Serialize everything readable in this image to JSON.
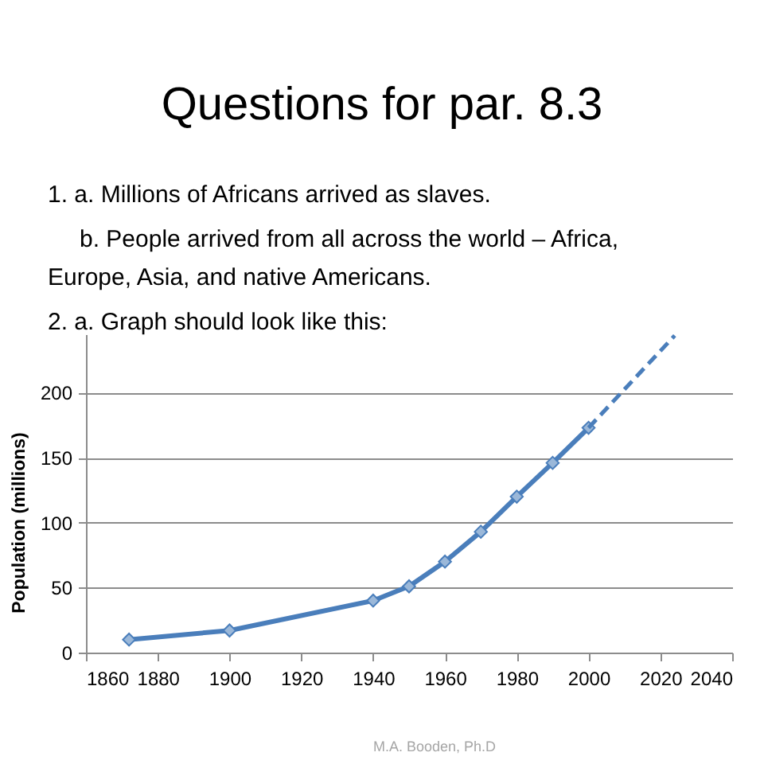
{
  "chart_data": {
    "type": "line",
    "title": "Questions for par. 8.3",
    "ylabel": "Population (millions)",
    "annotations": [
      "1. a. Millions of Africans arrived as slaves.",
      "b. People arrived from all across the world – Africa, Europe, Asia, and native Americans.",
      "2. a. Graph should look like this:",
      "M.A. Booden, Ph.D"
    ],
    "series": [
      {
        "color": "#4a7ebb",
        "marker": "diamond",
        "line_style": "solid",
        "x": [
          1872,
          1900,
          1940,
          1950,
          1960,
          1970,
          1980,
          1990,
          2000
        ],
        "values": [
          10,
          17,
          40,
          51,
          70,
          93,
          120,
          146,
          173
        ]
      },
      {
        "color": "#4a7ebb",
        "marker": "none",
        "line_style": "dashed",
        "x": [
          2000,
          2024
        ],
        "values": [
          173,
          244
        ]
      }
    ],
    "xlim": [
      1860,
      2040
    ],
    "xticks": [
      1860,
      1880,
      1900,
      1920,
      1940,
      1960,
      1980,
      2000,
      2020,
      2040
    ],
    "ylim": [
      0,
      245
    ],
    "yticks": [
      0,
      50,
      100,
      150,
      200
    ],
    "grid": "y"
  }
}
